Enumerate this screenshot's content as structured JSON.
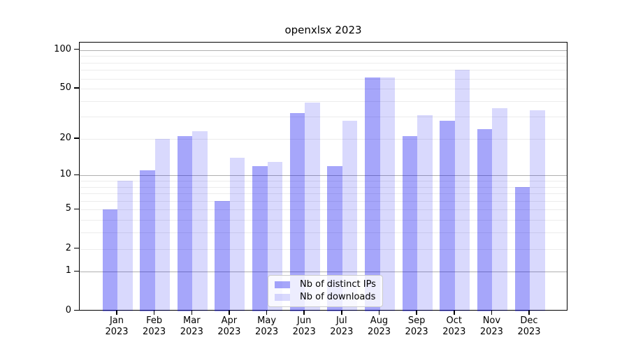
{
  "figure": {
    "title": "openxlsx 2023"
  },
  "chart_data": {
    "type": "bar",
    "title": "openxlsx 2023",
    "categories": [
      "Jan",
      "Feb",
      "Mar",
      "Apr",
      "May",
      "Jun",
      "Jul",
      "Aug",
      "Sep",
      "Oct",
      "Nov",
      "Dec"
    ],
    "x_year_line": "2023",
    "series": [
      {
        "name": "Nb of distinct IPs",
        "color_hex": "#a6a6fa",
        "css_color": "rgba(0,0,240,0.35)",
        "values": [
          5,
          11,
          21,
          6,
          12,
          32,
          12,
          61,
          21,
          28,
          24,
          8
        ]
      },
      {
        "name": "Nb of downloads",
        "color_hex": "#d9d9fd",
        "css_color": "rgba(0,0,240,0.15)",
        "values": [
          9,
          20,
          23,
          14,
          13,
          39,
          28,
          61,
          31,
          70,
          35,
          34
        ]
      }
    ],
    "y_axis": {
      "scale": "log1p",
      "tick_values": [
        0,
        1,
        2,
        5,
        10,
        20,
        50,
        100
      ],
      "minor_tick_values": [
        3,
        4,
        6,
        7,
        8,
        9,
        30,
        40,
        60,
        70,
        80,
        90
      ],
      "top_value_shown": 100
    },
    "xlabel": "",
    "ylabel": "",
    "grid": "horizontal",
    "legend": {
      "position": "inside-bottom-center",
      "entries": [
        "Nb of distinct IPs",
        "Nb of downloads"
      ]
    },
    "colors": {
      "grid_decade": "#b0b0b0",
      "grid_minor": "#ececec",
      "frame": "#000000",
      "background": "#ffffff"
    }
  }
}
